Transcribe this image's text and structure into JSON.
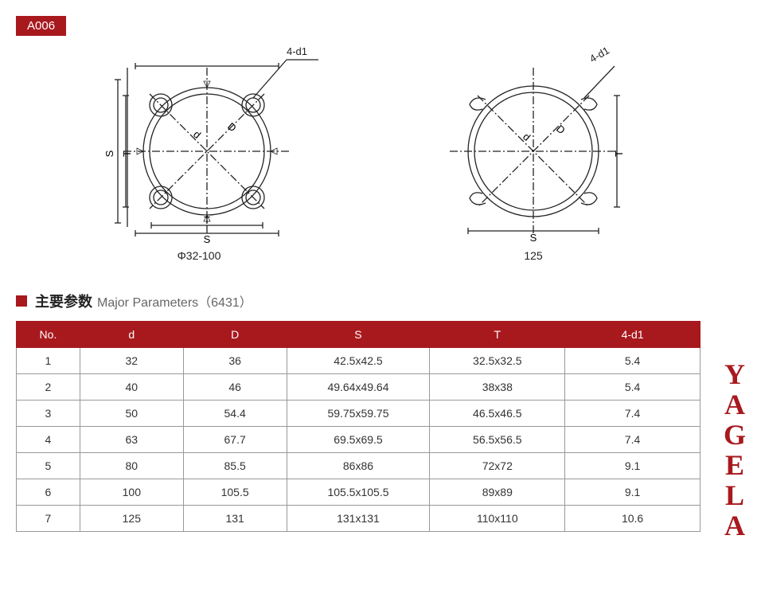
{
  "badge": "A006",
  "diagrams": {
    "left_caption": "Φ32-100",
    "right_caption": "125",
    "callout": "4-d1",
    "labels": {
      "S": "S",
      "T": "T",
      "D": "D",
      "d": "d"
    }
  },
  "section": {
    "cn": "主要参数",
    "en": "Major Parameters（6431）"
  },
  "table": {
    "columns": [
      "No.",
      "d",
      "D",
      "S",
      "T",
      "4-d1"
    ],
    "rows": [
      [
        "1",
        "32",
        "36",
        "42.5x42.5",
        "32.5x32.5",
        "5.4"
      ],
      [
        "2",
        "40",
        "46",
        "49.64x49.64",
        "38x38",
        "5.4"
      ],
      [
        "3",
        "50",
        "54.4",
        "59.75x59.75",
        "46.5x46.5",
        "7.4"
      ],
      [
        "4",
        "63",
        "67.7",
        "69.5x69.5",
        "56.5x56.5",
        "7.4"
      ],
      [
        "5",
        "80",
        "85.5",
        "86x86",
        "72x72",
        "9.1"
      ],
      [
        "6",
        "100",
        "105.5",
        "105.5x105.5",
        "89x89",
        "9.1"
      ],
      [
        "7",
        "125",
        "131",
        "131x131",
        "110x110",
        "10.6"
      ]
    ],
    "col_widths": [
      "80px",
      "130px",
      "130px",
      "180px",
      "170px",
      "170px"
    ],
    "header_bg": "#a8191e",
    "header_color": "#ffffff",
    "border_color": "#999999"
  },
  "watermark": "YAGELA",
  "colors": {
    "brand": "#a8191e",
    "stroke": "#222222"
  }
}
